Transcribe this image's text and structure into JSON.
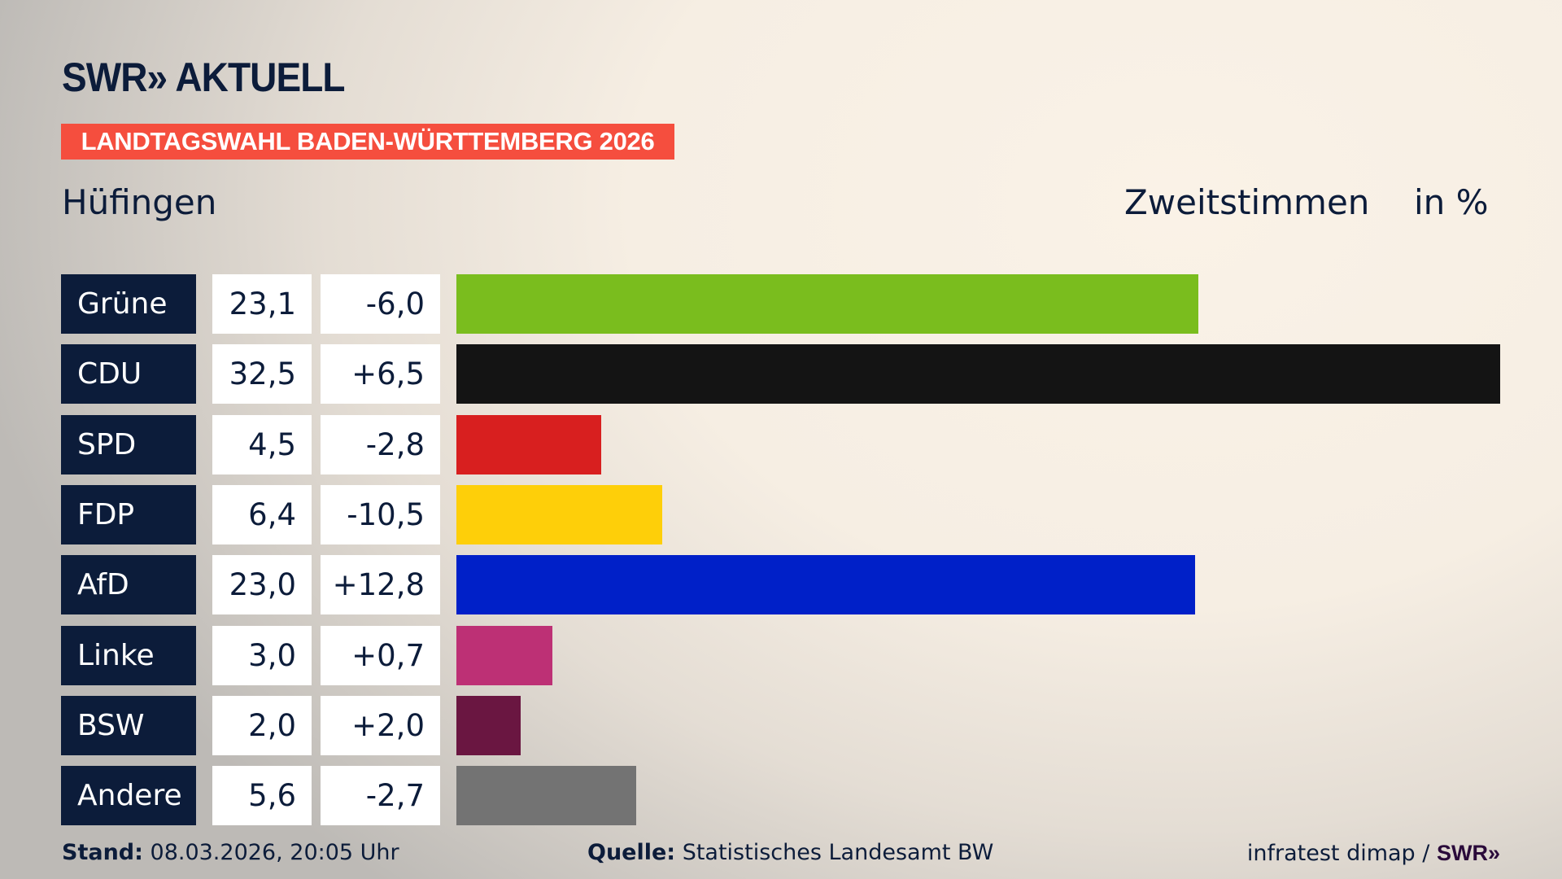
{
  "header": {
    "logo": "SWR» AKTUELL",
    "banner": "LANDTAGSWAHL BADEN-WÜRTTEMBERG 2026",
    "place": "Hüfingen",
    "metric": "Zweitstimmen",
    "unit": "in %"
  },
  "chart_data": {
    "type": "bar",
    "orientation": "horizontal",
    "categories": [
      "Grüne",
      "CDU",
      "SPD",
      "FDP",
      "AfD",
      "Linke",
      "BSW",
      "Andere"
    ],
    "values": [
      23.1,
      32.5,
      4.5,
      6.4,
      23.0,
      3.0,
      2.0,
      5.6
    ],
    "value_labels": [
      "23,1",
      "32,5",
      "4,5",
      "6,4",
      "23,0",
      "3,0",
      "2,0",
      "5,6"
    ],
    "diff_labels": [
      "-6,0",
      "+6,5",
      "-2,8",
      "-10,5",
      "+12,8",
      "+0,7",
      "+2,0",
      "-2,7"
    ],
    "colors": [
      "#7abd1e",
      "#141414",
      "#d81f1f",
      "#fecf09",
      "#0020c8",
      "#bd3075",
      "#6a1641",
      "#737373"
    ],
    "xlim": [
      0,
      32.5
    ]
  },
  "footer": {
    "stand_label": "Stand:",
    "stand_value": "08.03.2026, 20:05 Uhr",
    "source_label": "Quelle:",
    "source_value": "Statistisches Landesamt BW",
    "credit": "infratest dimap /",
    "credit_logo": "SWR»"
  }
}
